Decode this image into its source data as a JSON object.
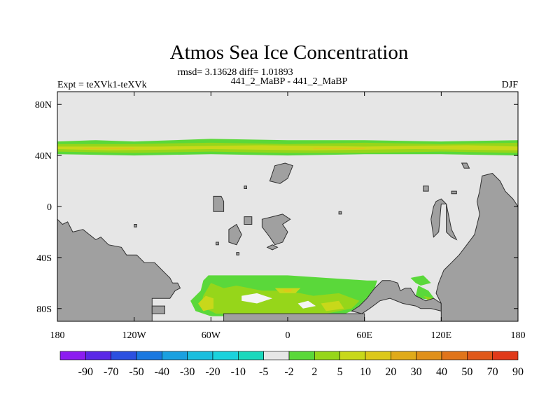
{
  "chart_data": {
    "type": "heatmap",
    "title": "Atmos Sea Ice Concentration",
    "stats": "rmsd= 3.13628 diff= 1.01893",
    "left_label": "Expt = teXVk1-teXVk",
    "center_label": "441_2_MaBP - 441_2_MaBP",
    "season": "DJF",
    "projection": "cylindrical equidistant",
    "xlim": [
      -180,
      180
    ],
    "ylim": [
      -90,
      90
    ],
    "x_ticks": [
      {
        "value": -180,
        "label": "180"
      },
      {
        "value": -120,
        "label": "120W"
      },
      {
        "value": -60,
        "label": "60W"
      },
      {
        "value": 0,
        "label": "0"
      },
      {
        "value": 60,
        "label": "60E"
      },
      {
        "value": 120,
        "label": "120E"
      },
      {
        "value": 180,
        "label": "180"
      }
    ],
    "y_ticks": [
      {
        "value": 80,
        "label": "80N"
      },
      {
        "value": 40,
        "label": "40N"
      },
      {
        "value": 0,
        "label": "0"
      },
      {
        "value": -40,
        "label": "40S"
      },
      {
        "value": -80,
        "label": "80S"
      }
    ],
    "colorbar": {
      "colors": [
        "#8c1cf0",
        "#5a28e6",
        "#2c50e0",
        "#1a78e0",
        "#1aa0e0",
        "#1abede",
        "#1ad2dc",
        "#1ad8bc",
        "#e6e6e6",
        "#5ad83a",
        "#96d61a",
        "#c8d81a",
        "#dcc81a",
        "#e0aa1a",
        "#e0901a",
        "#e0741a",
        "#e0581a",
        "#e03a1a"
      ],
      "labels": [
        "-90",
        "-70",
        "-50",
        "-40",
        "-30",
        "-20",
        "-10",
        "-5",
        "-2",
        "2",
        "5",
        "10",
        "20",
        "30",
        "40",
        "50",
        "70",
        "90"
      ]
    },
    "colors": {
      "background": "#e6e6e6",
      "land": "#a0a0a0",
      "coast": "#303030",
      "band_light": "#5ad83a",
      "band_mid": "#96d61a",
      "band_strong": "#c8d81a",
      "band_peak": "#dcc81a"
    },
    "land_polygons": [
      [
        [
          -180,
          -10
        ],
        [
          -176,
          -14
        ],
        [
          -172,
          -12
        ],
        [
          -168,
          -20
        ],
        [
          -160,
          -18
        ],
        [
          -150,
          -26
        ],
        [
          -146,
          -24
        ],
        [
          -140,
          -30
        ],
        [
          -130,
          -32
        ],
        [
          -126,
          -38
        ],
        [
          -118,
          -38
        ],
        [
          -112,
          -44
        ],
        [
          -104,
          -44
        ],
        [
          -96,
          -52
        ],
        [
          -92,
          -56
        ],
        [
          -90,
          -60
        ],
        [
          -86,
          -60
        ],
        [
          -84,
          -64
        ],
        [
          -88,
          -66
        ],
        [
          -92,
          -72
        ],
        [
          -106,
          -72
        ],
        [
          -106,
          -90
        ],
        [
          -180,
          -90
        ]
      ],
      [
        [
          -106,
          -78
        ],
        [
          -96,
          -78
        ],
        [
          -96,
          -84
        ],
        [
          -106,
          -84
        ]
      ],
      [
        [
          -50,
          -84
        ],
        [
          60,
          -84
        ],
        [
          60,
          -90
        ],
        [
          -50,
          -90
        ]
      ],
      [
        [
          50,
          -82
        ],
        [
          56,
          -78
        ],
        [
          62,
          -72
        ],
        [
          68,
          -64
        ],
        [
          74,
          -58
        ],
        [
          80,
          -58
        ],
        [
          86,
          -60
        ],
        [
          88,
          -66
        ],
        [
          92,
          -64
        ],
        [
          96,
          -64
        ],
        [
          100,
          -70
        ],
        [
          108,
          -74
        ],
        [
          114,
          -72
        ],
        [
          120,
          -76
        ],
        [
          120,
          -82
        ],
        [
          112,
          -80
        ],
        [
          104,
          -80
        ],
        [
          100,
          -78
        ],
        [
          90,
          -76
        ],
        [
          80,
          -72
        ],
        [
          72,
          -74
        ],
        [
          64,
          -80
        ],
        [
          58,
          -84
        ]
      ],
      [
        [
          120,
          -76
        ],
        [
          116,
          -68
        ],
        [
          118,
          -60
        ],
        [
          122,
          -50
        ],
        [
          128,
          -44
        ],
        [
          134,
          -38
        ],
        [
          140,
          -30
        ],
        [
          146,
          -22
        ],
        [
          150,
          -6
        ],
        [
          148,
          4
        ],
        [
          150,
          12
        ],
        [
          152,
          24
        ],
        [
          160,
          26
        ],
        [
          166,
          20
        ],
        [
          170,
          12
        ],
        [
          176,
          6
        ],
        [
          180,
          0
        ],
        [
          180,
          -90
        ],
        [
          120,
          -90
        ]
      ],
      [
        [
          116,
          4
        ],
        [
          120,
          6
        ],
        [
          124,
          2
        ],
        [
          124,
          -20
        ],
        [
          128,
          -24
        ],
        [
          132,
          -26
        ],
        [
          128,
          -18
        ],
        [
          126,
          -8
        ],
        [
          124,
          2
        ],
        [
          120,
          2
        ],
        [
          118,
          -20
        ],
        [
          114,
          -24
        ],
        [
          112,
          -10
        ],
        [
          114,
          0
        ]
      ],
      [
        [
          -58,
          8
        ],
        [
          -52,
          8
        ],
        [
          -50,
          4
        ],
        [
          -50,
          -4
        ],
        [
          -58,
          -4
        ]
      ],
      [
        [
          -46,
          -18
        ],
        [
          -40,
          -14
        ],
        [
          -36,
          -22
        ],
        [
          -40,
          -30
        ],
        [
          -46,
          -28
        ]
      ],
      [
        [
          -10,
          32
        ],
        [
          -2,
          34
        ],
        [
          4,
          32
        ],
        [
          0,
          22
        ],
        [
          -6,
          18
        ],
        [
          -14,
          20
        ],
        [
          -12,
          26
        ]
      ],
      [
        [
          -20,
          -10
        ],
        [
          -12,
          -8
        ],
        [
          -4,
          -6
        ],
        [
          2,
          -10
        ],
        [
          -4,
          -14
        ],
        [
          0,
          -20
        ],
        [
          -4,
          -28
        ],
        [
          -10,
          -30
        ],
        [
          -14,
          -24
        ],
        [
          -20,
          -16
        ]
      ],
      [
        [
          -34,
          -8
        ],
        [
          -28,
          -8
        ],
        [
          -28,
          -14
        ],
        [
          -34,
          -14
        ]
      ],
      [
        [
          -12,
          -30
        ],
        [
          -8,
          -32
        ],
        [
          -12,
          -34
        ],
        [
          -16,
          -32
        ]
      ],
      [
        [
          -34,
          14
        ],
        [
          -32,
          14
        ],
        [
          -32,
          16
        ],
        [
          -34,
          16
        ]
      ],
      [
        [
          -120,
          -14
        ],
        [
          -118,
          -14
        ],
        [
          -118,
          -16
        ],
        [
          -120,
          -16
        ]
      ],
      [
        [
          -56,
          -28
        ],
        [
          -54,
          -28
        ],
        [
          -54,
          -30
        ],
        [
          -56,
          -30
        ]
      ],
      [
        [
          -40,
          -36
        ],
        [
          -38,
          -36
        ],
        [
          -38,
          -38
        ],
        [
          -40,
          -38
        ]
      ],
      [
        [
          40,
          -4
        ],
        [
          42,
          -4
        ],
        [
          42,
          -6
        ],
        [
          40,
          -6
        ]
      ],
      [
        [
          106,
          16
        ],
        [
          110,
          16
        ],
        [
          110,
          12
        ],
        [
          106,
          12
        ]
      ],
      [
        [
          136,
          34
        ],
        [
          140,
          34
        ],
        [
          142,
          30
        ],
        [
          138,
          30
        ]
      ],
      [
        [
          128,
          12
        ],
        [
          132,
          12
        ],
        [
          132,
          10
        ],
        [
          128,
          10
        ]
      ]
    ],
    "ice_patches": [
      {
        "tier": 0,
        "points": [
          [
            -180,
            51
          ],
          [
            -150,
            52
          ],
          [
            -120,
            51
          ],
          [
            -60,
            53
          ],
          [
            0,
            52
          ],
          [
            60,
            52
          ],
          [
            120,
            51
          ],
          [
            180,
            52
          ],
          [
            180,
            40
          ],
          [
            120,
            41
          ],
          [
            60,
            41
          ],
          [
            0,
            40
          ],
          [
            -60,
            41
          ],
          [
            -120,
            40
          ],
          [
            -180,
            41
          ]
        ]
      },
      {
        "tier": 1,
        "points": [
          [
            -180,
            49
          ],
          [
            -120,
            49
          ],
          [
            -60,
            50
          ],
          [
            0,
            49
          ],
          [
            60,
            50
          ],
          [
            120,
            49
          ],
          [
            180,
            50
          ],
          [
            180,
            42
          ],
          [
            120,
            43
          ],
          [
            60,
            42
          ],
          [
            0,
            42
          ],
          [
            -60,
            43
          ],
          [
            -120,
            42
          ],
          [
            -180,
            43
          ]
        ]
      },
      {
        "tier": 2,
        "points": [
          [
            -180,
            47
          ],
          [
            -100,
            47
          ],
          [
            -20,
            48
          ],
          [
            60,
            47
          ],
          [
            140,
            48
          ],
          [
            180,
            47
          ],
          [
            180,
            44
          ],
          [
            100,
            45
          ],
          [
            20,
            44
          ],
          [
            -60,
            45
          ],
          [
            -140,
            44
          ],
          [
            -180,
            45
          ]
        ]
      },
      {
        "tier": 3,
        "points": [
          [
            -160,
            46
          ],
          [
            -120,
            46
          ],
          [
            -120,
            45
          ],
          [
            -160,
            45
          ]
        ]
      },
      {
        "tier": 3,
        "points": [
          [
            20,
            46
          ],
          [
            60,
            46
          ],
          [
            60,
            45
          ],
          [
            20,
            45
          ]
        ]
      },
      {
        "tier": 0,
        "points": [
          [
            -62,
            -54
          ],
          [
            -30,
            -54
          ],
          [
            0,
            -54
          ],
          [
            30,
            -56
          ],
          [
            62,
            -58
          ],
          [
            70,
            -58
          ],
          [
            68,
            -64
          ],
          [
            62,
            -72
          ],
          [
            56,
            -78
          ],
          [
            50,
            -82
          ],
          [
            40,
            -86
          ],
          [
            -20,
            -86
          ],
          [
            -60,
            -86
          ],
          [
            -72,
            -82
          ],
          [
            -76,
            -74
          ],
          [
            -68,
            -66
          ],
          [
            -66,
            -58
          ]
        ]
      },
      {
        "tier": 1,
        "points": [
          [
            -60,
            -60
          ],
          [
            -50,
            -64
          ],
          [
            -40,
            -62
          ],
          [
            -20,
            -66
          ],
          [
            0,
            -66
          ],
          [
            20,
            -70
          ],
          [
            40,
            -68
          ],
          [
            56,
            -74
          ],
          [
            50,
            -80
          ],
          [
            30,
            -84
          ],
          [
            0,
            -84
          ],
          [
            -30,
            -84
          ],
          [
            -56,
            -84
          ],
          [
            -68,
            -78
          ],
          [
            -66,
            -70
          ]
        ]
      },
      {
        "tier": 2,
        "points": [
          [
            -64,
            -70
          ],
          [
            -58,
            -72
          ],
          [
            -58,
            -80
          ],
          [
            -66,
            -82
          ],
          [
            -70,
            -76
          ]
        ]
      },
      {
        "tier": 2,
        "points": [
          [
            -10,
            -64
          ],
          [
            10,
            -64
          ],
          [
            6,
            -68
          ],
          [
            -6,
            -68
          ]
        ]
      },
      {
        "tier": 2,
        "points": [
          [
            26,
            -76
          ],
          [
            40,
            -74
          ],
          [
            44,
            -80
          ],
          [
            30,
            -82
          ]
        ]
      },
      {
        "tier": 3,
        "points": [
          [
            -4,
            -65
          ],
          [
            4,
            -65
          ],
          [
            2,
            -67
          ],
          [
            -2,
            -67
          ]
        ]
      },
      {
        "tier": 0,
        "points": [
          [
            96,
            -56
          ],
          [
            106,
            -54
          ],
          [
            112,
            -60
          ],
          [
            104,
            -62
          ],
          [
            100,
            -60
          ]
        ]
      },
      {
        "tier": 0,
        "points": [
          [
            102,
            -62
          ],
          [
            110,
            -66
          ],
          [
            116,
            -74
          ],
          [
            104,
            -72
          ],
          [
            100,
            -70
          ]
        ]
      },
      {
        "tier": 1,
        "points": [
          [
            106,
            -70
          ],
          [
            114,
            -72
          ],
          [
            110,
            -74
          ]
        ]
      }
    ],
    "open_water": [
      [
        [
          -36,
          -70
        ],
        [
          -24,
          -68
        ],
        [
          -12,
          -72
        ],
        [
          -24,
          -76
        ],
        [
          -36,
          -74
        ]
      ],
      [
        [
          8,
          -76
        ],
        [
          16,
          -74
        ],
        [
          22,
          -78
        ],
        [
          12,
          -80
        ]
      ]
    ]
  }
}
